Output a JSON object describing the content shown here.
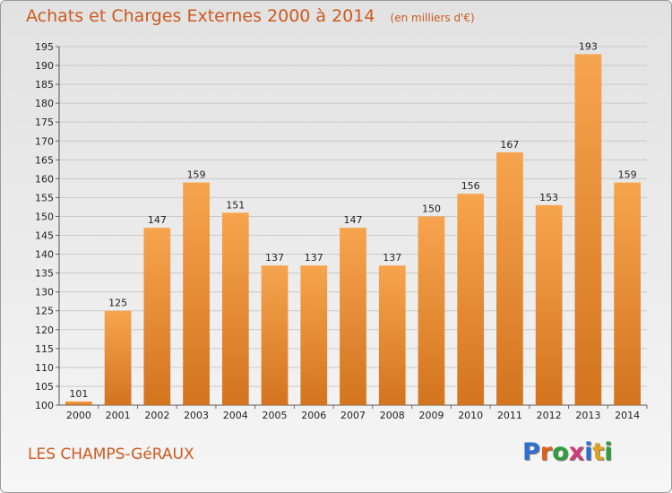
{
  "chart_data": {
    "type": "bar",
    "title": "Achats et Charges Externes 2000 à 2014",
    "unit_label": "(en milliers d'€)",
    "categories": [
      "2000",
      "2001",
      "2002",
      "2003",
      "2004",
      "2005",
      "2006",
      "2007",
      "2008",
      "2009",
      "2010",
      "2011",
      "2012",
      "2013",
      "2014"
    ],
    "values": [
      101,
      125,
      147,
      159,
      151,
      137,
      137,
      147,
      137,
      150,
      156,
      167,
      153,
      193,
      159
    ],
    "ylim": [
      100,
      195
    ],
    "yticks": [
      100,
      105,
      110,
      115,
      120,
      125,
      130,
      135,
      140,
      145,
      150,
      155,
      160,
      165,
      170,
      175,
      180,
      185,
      190,
      195
    ],
    "grid": true,
    "bar_color_top": "#f7a44e",
    "bar_color_bottom": "#d3741f"
  },
  "commune": "LES CHAMPS-GéRAUX",
  "logo": {
    "text": "Proxiti",
    "letter_colors": [
      "#2f6fd0",
      "#e0601b",
      "#2f9e3c",
      "#d23a7a",
      "#2f6fd0",
      "#e0a21b",
      "#2f9e3c"
    ]
  }
}
